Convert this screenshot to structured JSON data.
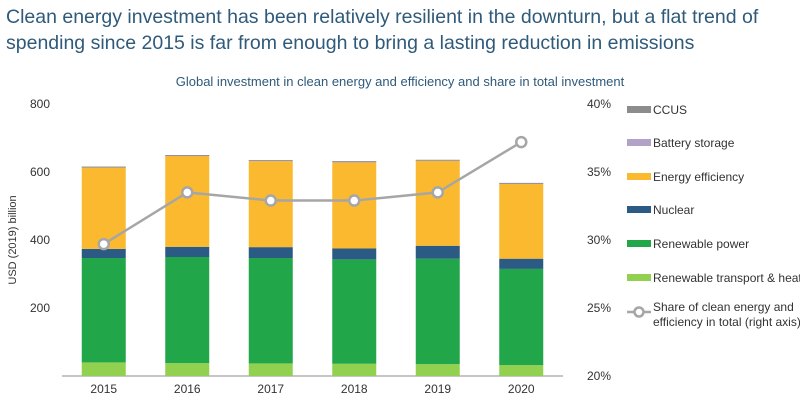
{
  "headline": "Clean energy investment has been relatively resilient in the downturn, but a flat trend of spending since 2015 is far from enough to bring a lasting reduction in emissions",
  "chart_data": {
    "type": "bar",
    "stacked": true,
    "title": "Global investment in clean energy and efficiency and share in total investment",
    "ylabel": "USD (2019) billion",
    "ylim": [
      0,
      800
    ],
    "y_ticks": [
      "0",
      "200",
      "400",
      "600",
      "800"
    ],
    "y2lim": [
      20,
      40
    ],
    "y2_ticks": [
      "20%",
      "25%",
      "30%",
      "35%",
      "40%"
    ],
    "grid": false,
    "legend_position": "right",
    "categories": [
      "2015",
      "2016",
      "2017",
      "2018",
      "2019",
      "2020"
    ],
    "series": [
      {
        "name": "Renewable transport & heat",
        "color": "#92d050",
        "values": [
          40,
          38,
          37,
          36,
          35,
          32
        ]
      },
      {
        "name": "Renewable power",
        "color": "#21a64a",
        "values": [
          307,
          312,
          310,
          307,
          310,
          283
        ]
      },
      {
        "name": "Nuclear",
        "color": "#2b5b84",
        "values": [
          27,
          30,
          32,
          32,
          38,
          30
        ]
      },
      {
        "name": "Energy efficiency",
        "color": "#fbb92f",
        "values": [
          240,
          267,
          253,
          253,
          250,
          220
        ]
      },
      {
        "name": "Battery storage",
        "color": "#b3a2c7",
        "values": [
          1,
          2,
          2,
          3,
          2,
          2
        ]
      },
      {
        "name": "CCUS",
        "color": "#8c8c8c",
        "values": [
          1,
          1,
          1,
          1,
          1,
          1
        ]
      }
    ],
    "line_series": {
      "name": "Share of clean energy and efficiency in total (right axis)",
      "axis": "right",
      "color": "#a6a6a6",
      "values": [
        29.7,
        33.5,
        32.9,
        32.9,
        33.5,
        37.2
      ]
    },
    "legend_order": [
      "CCUS",
      "Battery storage",
      "Energy efficiency",
      "Nuclear",
      "Renewable power",
      "Renewable transport & heat",
      "Share of clean energy and efficiency in total (right axis)"
    ]
  }
}
